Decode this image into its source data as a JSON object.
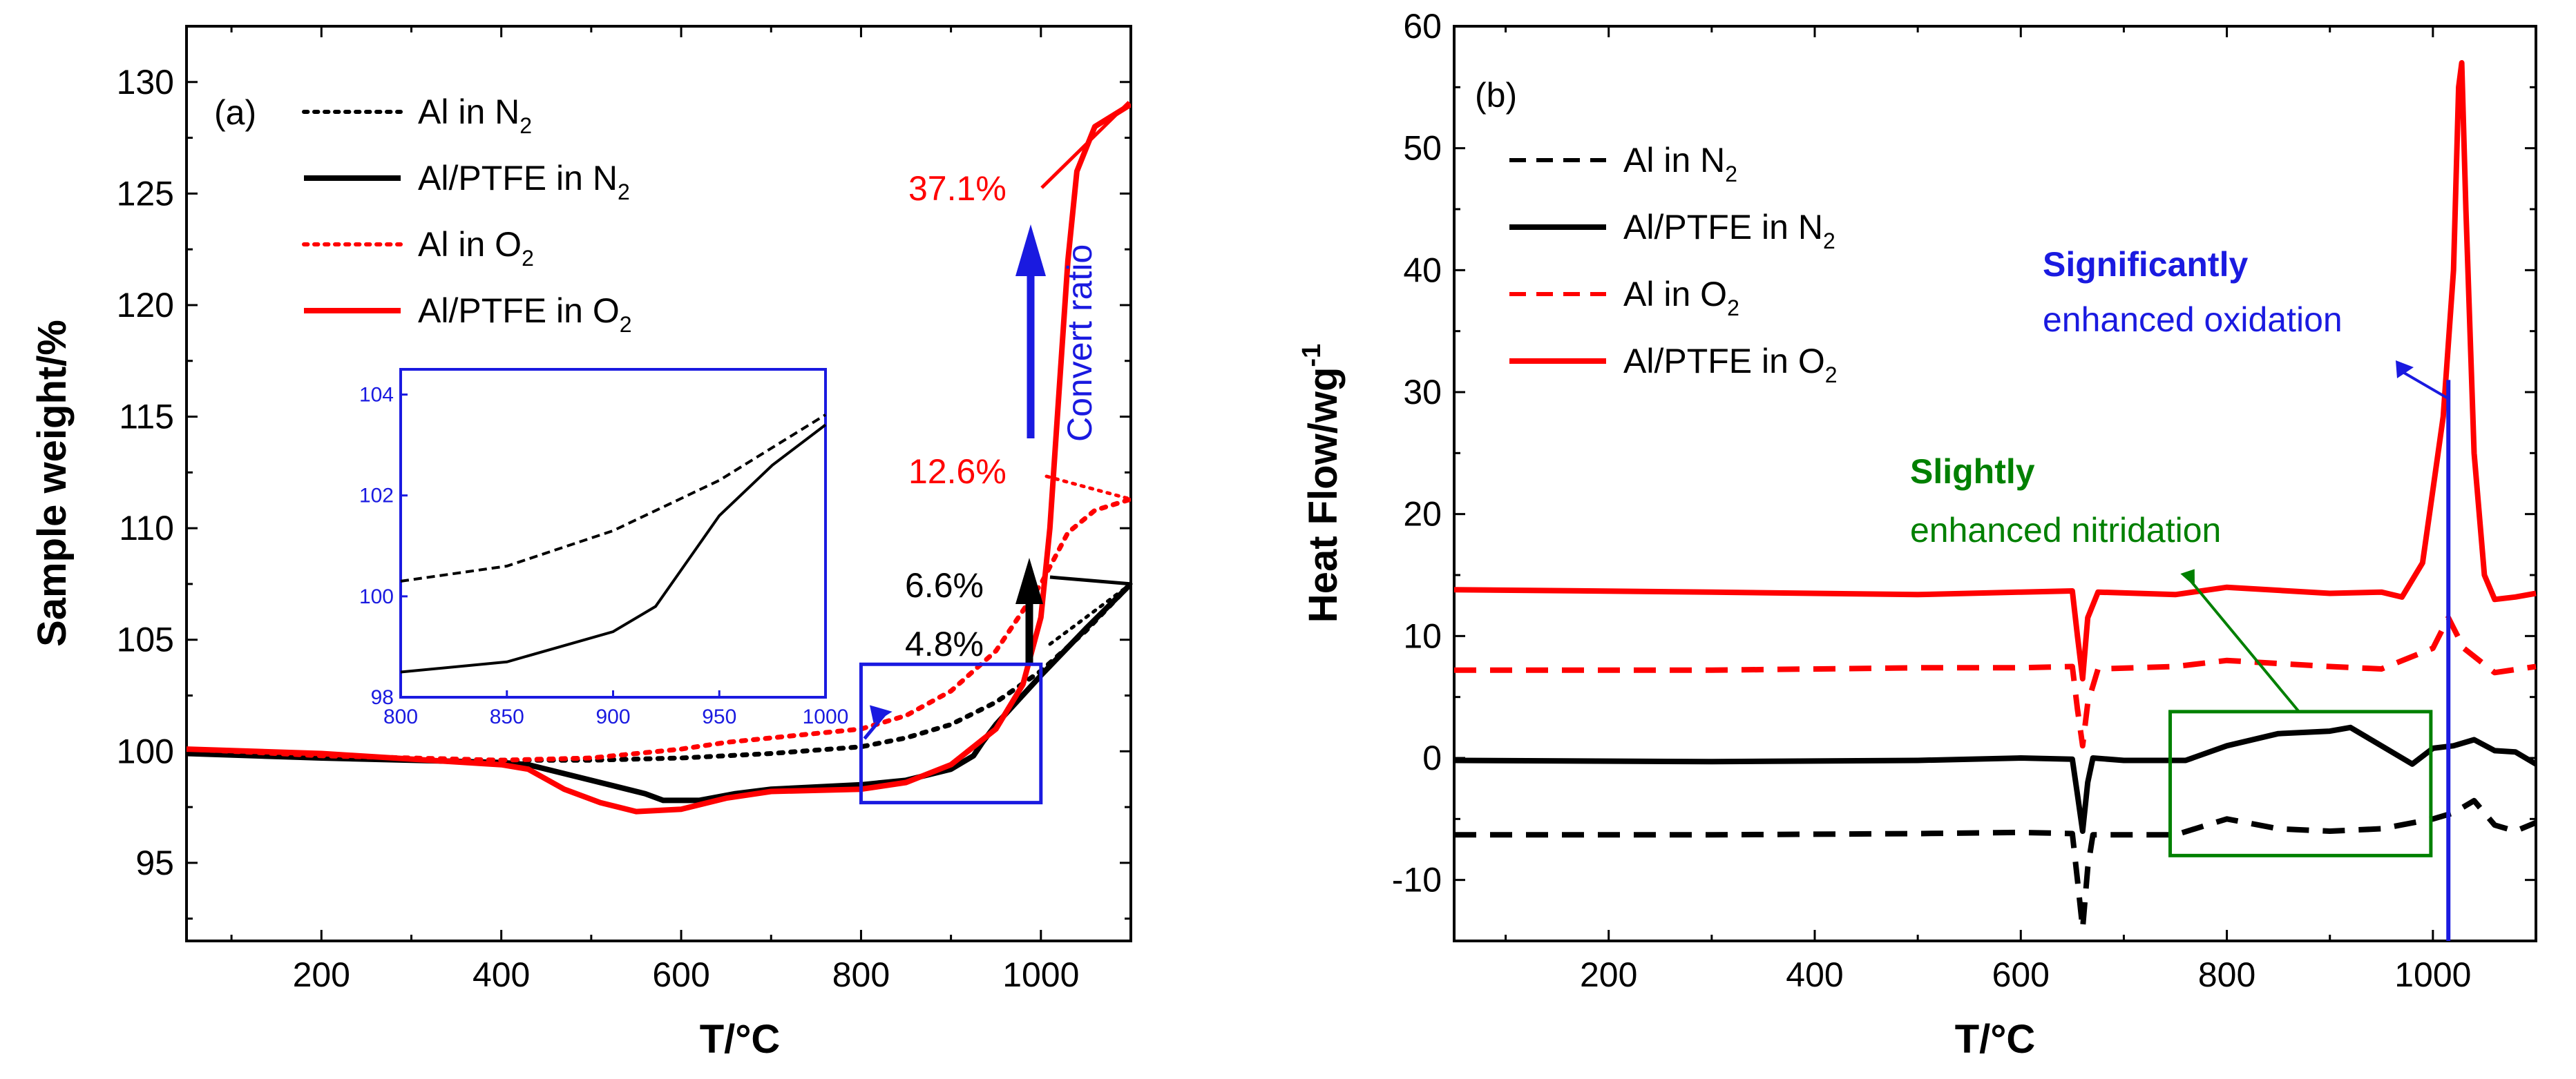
{
  "chart_data": [
    {
      "type": "line",
      "panel_label": "(a)",
      "xlabel": "T/°C",
      "ylabel": "Sample weight/%",
      "xlim": [
        50,
        1100
      ],
      "ylim": [
        91.5,
        132.5
      ],
      "xticks": [
        200,
        400,
        600,
        800,
        1000
      ],
      "yticks": [
        95,
        100,
        105,
        110,
        115,
        120,
        125,
        130
      ],
      "legend": [
        {
          "text": "Al in N",
          "sub": "2",
          "color": "#000000",
          "style": "dotted"
        },
        {
          "text": "Al/PTFE in N",
          "sub": "2",
          "color": "#000000",
          "style": "solid"
        },
        {
          "text": "Al in O",
          "sub": "2",
          "color": "#ff0000",
          "style": "dotted"
        },
        {
          "text": "Al/PTFE in O",
          "sub": "2",
          "color": "#ff0000",
          "style": "solid"
        }
      ],
      "series": [
        {
          "name": "Al in N2",
          "color": "#000000",
          "style": "dotted",
          "x": [
            50,
            200,
            400,
            500,
            600,
            700,
            800,
            850,
            900,
            950,
            1000,
            1050,
            1100
          ],
          "y": [
            99.9,
            99.7,
            99.6,
            99.6,
            99.7,
            99.9,
            100.2,
            100.6,
            101.2,
            102.2,
            103.6,
            105.4,
            107.5
          ]
        },
        {
          "name": "Al/PTFE in N2",
          "color": "#000000",
          "style": "solid",
          "x": [
            50,
            200,
            400,
            430,
            470,
            520,
            560,
            580,
            620,
            660,
            700,
            800,
            850,
            900,
            925,
            935,
            950,
            1000,
            1050,
            1100
          ],
          "y": [
            99.9,
            99.7,
            99.5,
            99.4,
            99.0,
            98.5,
            98.1,
            97.8,
            97.8,
            98.1,
            98.3,
            98.5,
            98.7,
            99.2,
            99.8,
            100.4,
            101.2,
            103.4,
            105.5,
            107.5
          ]
        },
        {
          "name": "Al in O2",
          "color": "#ff0000",
          "style": "dotted",
          "x": [
            50,
            200,
            400,
            500,
            600,
            650,
            700,
            800,
            850,
            900,
            950,
            1000,
            1030,
            1060,
            1100
          ],
          "y": [
            100.1,
            99.8,
            99.6,
            99.7,
            100.1,
            100.4,
            100.6,
            101.0,
            101.6,
            102.7,
            104.5,
            107.5,
            109.8,
            110.8,
            111.3
          ]
        },
        {
          "name": "Al/PTFE in O2",
          "color": "#ff0000",
          "style": "solid",
          "x": [
            50,
            200,
            400,
            430,
            470,
            510,
            550,
            600,
            650,
            700,
            800,
            850,
            900,
            950,
            980,
            1000,
            1010,
            1020,
            1030,
            1040,
            1060,
            1080,
            1100
          ],
          "y": [
            100.1,
            99.9,
            99.4,
            99.2,
            98.3,
            97.7,
            97.3,
            97.4,
            97.9,
            98.2,
            98.3,
            98.6,
            99.4,
            101.0,
            103.0,
            106.0,
            110.0,
            116.0,
            122.0,
            126.0,
            128.0,
            128.5,
            129.0
          ]
        }
      ],
      "annotations": {
        "pct_o2_ptfe": "37.1%",
        "pct_o2_al": "12.6%",
        "pct_n2_ptfe": "6.6%",
        "pct_n2_al": "4.8%",
        "convert_ratio": "Convert ratio"
      },
      "zoom_box": {
        "x": [
          800,
          1000
        ],
        "y": [
          97.7,
          103.9
        ]
      },
      "inset": {
        "xlim": [
          800,
          1000
        ],
        "ylim": [
          98,
          104.5
        ],
        "xticks": [
          800,
          850,
          900,
          950,
          1000
        ],
        "yticks": [
          98,
          100,
          102,
          104
        ],
        "series": [
          {
            "name": "Al in N2",
            "style": "dashed",
            "x": [
              800,
              850,
              900,
              950,
              1000
            ],
            "y": [
              100.3,
              100.6,
              101.3,
              102.3,
              103.6
            ]
          },
          {
            "name": "Al/PTFE in N2",
            "style": "solid",
            "x": [
              800,
              850,
              900,
              920,
              930,
              950,
              975,
              1000
            ],
            "y": [
              98.5,
              98.7,
              99.3,
              99.8,
              100.4,
              101.6,
              102.6,
              103.4
            ]
          }
        ]
      }
    },
    {
      "type": "line",
      "panel_label": "(b)",
      "xlabel": "T/°C",
      "ylabel": "Heat Flow/wg",
      "ylabel_sup": "-1",
      "xlim": [
        50,
        1100
      ],
      "ylim": [
        -15,
        60
      ],
      "xticks": [
        200,
        400,
        600,
        800,
        1000
      ],
      "yticks": [
        -10,
        0,
        10,
        20,
        30,
        40,
        50,
        60
      ],
      "legend": [
        {
          "text": "Al in N",
          "sub": "2",
          "color": "#000000",
          "style": "dashed"
        },
        {
          "text": "Al/PTFE in N",
          "sub": "2",
          "color": "#000000",
          "style": "solid"
        },
        {
          "text": "Al in O",
          "sub": "2",
          "color": "#ff0000",
          "style": "dashed"
        },
        {
          "text": "Al/PTFE in O",
          "sub": "2",
          "color": "#ff0000",
          "style": "solid"
        }
      ],
      "series": [
        {
          "name": "Al/PTFE in O2",
          "color": "#ff0000",
          "style": "solid",
          "x": [
            50,
            300,
            500,
            600,
            650,
            655,
            660,
            665,
            675,
            750,
            800,
            900,
            950,
            970,
            990,
            1000,
            1010,
            1020,
            1025,
            1028,
            1032,
            1040,
            1050,
            1060,
            1080,
            1100
          ],
          "y": [
            13.8,
            13.6,
            13.4,
            13.6,
            13.7,
            10.0,
            6.5,
            11.5,
            13.6,
            13.4,
            14.0,
            13.5,
            13.6,
            13.2,
            16.0,
            22.0,
            28.0,
            40.0,
            55.0,
            57.0,
            45.0,
            25.0,
            15.0,
            13.0,
            13.2,
            13.5
          ]
        },
        {
          "name": "Al in O2",
          "color": "#ff0000",
          "style": "dashed",
          "x": [
            50,
            300,
            500,
            600,
            650,
            655,
            660,
            665,
            675,
            750,
            800,
            900,
            950,
            1000,
            1015,
            1030,
            1060,
            1100
          ],
          "y": [
            7.2,
            7.2,
            7.4,
            7.4,
            7.5,
            4.0,
            1.0,
            4.5,
            7.3,
            7.5,
            8.0,
            7.5,
            7.3,
            9.0,
            11.5,
            9.0,
            7.0,
            7.5
          ]
        },
        {
          "name": "Al/PTFE in N2",
          "color": "#000000",
          "style": "solid",
          "x": [
            50,
            300,
            500,
            600,
            650,
            655,
            660,
            665,
            670,
            700,
            760,
            800,
            850,
            900,
            920,
            950,
            980,
            1000,
            1020,
            1040,
            1060,
            1080,
            1100
          ],
          "y": [
            -0.2,
            -0.3,
            -0.2,
            0.0,
            -0.1,
            -3.0,
            -6.0,
            -2.0,
            0.0,
            -0.2,
            -0.2,
            1.0,
            2.0,
            2.2,
            2.5,
            1.0,
            -0.5,
            0.8,
            1.0,
            1.5,
            0.6,
            0.5,
            -0.5
          ]
        },
        {
          "name": "Al in N2",
          "color": "#000000",
          "style": "dashed",
          "x": [
            50,
            300,
            500,
            600,
            650,
            655,
            660,
            665,
            670,
            700,
            750,
            800,
            850,
            900,
            950,
            1000,
            1020,
            1040,
            1060,
            1080,
            1100
          ],
          "y": [
            -6.3,
            -6.3,
            -6.2,
            -6.1,
            -6.2,
            -10.0,
            -14.0,
            -9.0,
            -6.3,
            -6.3,
            -6.3,
            -5.0,
            -5.8,
            -6.0,
            -5.8,
            -5.0,
            -4.5,
            -3.5,
            -5.5,
            -6.0,
            -5.3
          ]
        }
      ],
      "annotations": {
        "significantly": "Significantly",
        "enhanced_oxidation": "enhanced oxidation",
        "slightly": "Slightly",
        "enhanced_nitridation": "enhanced nitridation"
      },
      "marker_line_x": 1015,
      "green_box": {
        "x": [
          745,
          998
        ],
        "y": [
          -8,
          3.8
        ]
      }
    }
  ]
}
